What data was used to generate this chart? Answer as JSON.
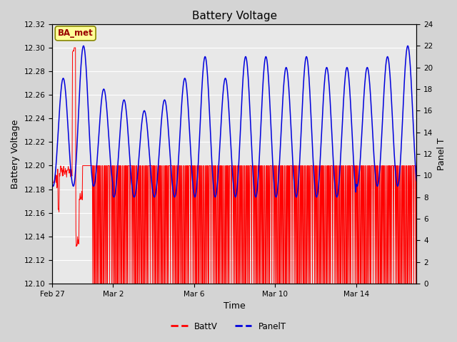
{
  "title": "Battery Voltage",
  "xlabel": "Time",
  "ylabel_left": "Battery Voltage",
  "ylabel_right": "Panel T",
  "ylim_left": [
    12.1,
    12.32
  ],
  "ylim_right": [
    0,
    24
  ],
  "yticks_left": [
    12.1,
    12.12,
    12.14,
    12.16,
    12.18,
    12.2,
    12.22,
    12.24,
    12.26,
    12.28,
    12.3,
    12.32
  ],
  "yticks_right": [
    0,
    2,
    4,
    6,
    8,
    10,
    12,
    14,
    16,
    18,
    20,
    22,
    24
  ],
  "xtick_labels": [
    "Feb 27",
    "Mar 2",
    "Mar 6",
    "Mar 10",
    "Mar 14"
  ],
  "xtick_positions_days": [
    0,
    3,
    7,
    11,
    15
  ],
  "fig_bg_color": "#d4d4d4",
  "plot_bg_color": "#e8e8e8",
  "grid_color": "#ffffff",
  "batt_color": "#ff0000",
  "panel_color": "#0000dd",
  "annotation_text": "BA_met",
  "annotation_bg": "#ffff99",
  "annotation_border": "#888800",
  "annotation_text_color": "#990000",
  "total_days": 18,
  "panel_peaks": [
    19,
    22,
    18,
    17,
    16,
    17,
    19,
    21,
    19,
    21,
    21,
    20,
    21,
    20,
    20,
    20,
    21,
    22
  ],
  "panel_troughs": [
    9,
    9,
    9,
    8,
    8,
    8,
    8,
    8,
    8,
    8,
    8,
    8,
    8,
    8,
    8,
    9,
    9,
    9
  ]
}
